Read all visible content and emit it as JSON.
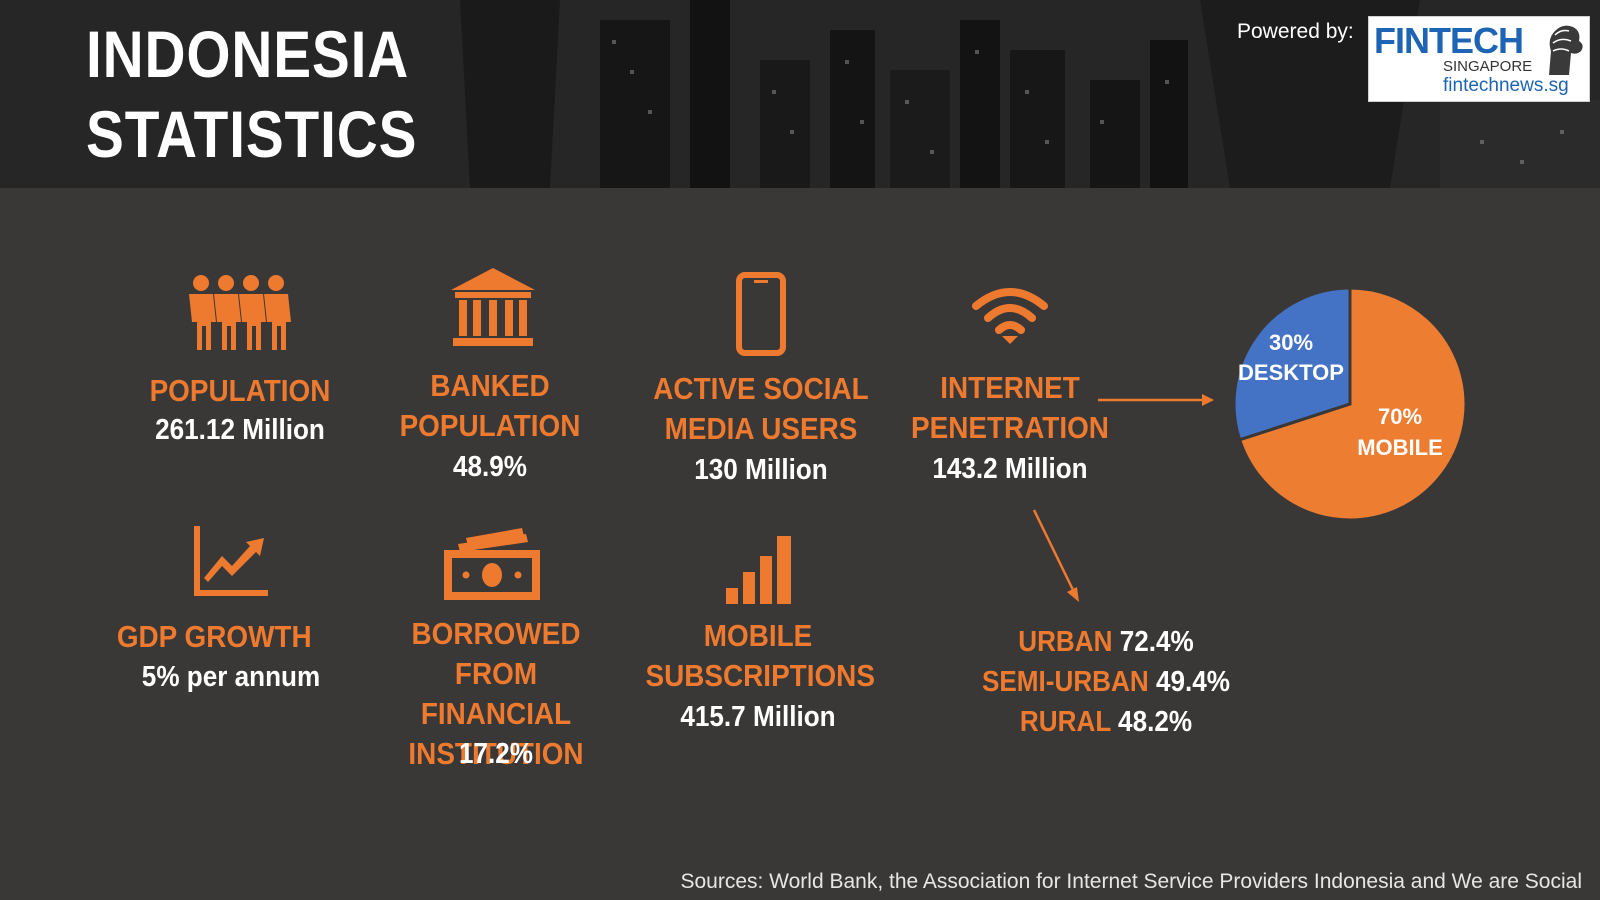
{
  "header": {
    "title_line1": "INDONESIA",
    "title_line2": "STATISTICS",
    "powered_by": "Powered by:",
    "logo": {
      "brand": "FINTECH",
      "sub": "SINGAPORE",
      "site": "fintechnews.sg"
    }
  },
  "stats": {
    "population": {
      "icon": "people-icon",
      "label": "POPULATION",
      "value": "261.12 Million"
    },
    "banked": {
      "icon": "bank-icon",
      "label_line1": "BANKED",
      "label_line2": "POPULATION",
      "value": "48.9%"
    },
    "social": {
      "icon": "smartphone-icon",
      "label_line1": "ACTIVE SOCIAL",
      "label_line2": "MEDIA USERS",
      "value": "130 Million"
    },
    "internet": {
      "icon": "wifi-icon",
      "label_line1": "INTERNET",
      "label_line2": "PENETRATION",
      "value": "143.2 Million"
    },
    "gdp": {
      "icon": "growth-chart-icon",
      "label": "GDP GROWTH",
      "value": "5% per annum"
    },
    "borrowed": {
      "icon": "cash-icon",
      "label_line1": "BORROWED FROM",
      "label_line2": "FINANCIAL",
      "label_line3": "INSTITUTION",
      "value": "17.2%"
    },
    "mobile": {
      "icon": "signal-bars-icon",
      "label_line1": "MOBILE",
      "label_line2": "SUBSCRIPTIONS",
      "value": "415.7 Million"
    }
  },
  "internet_breakdown": [
    {
      "label": "URBAN",
      "value": "72.4%"
    },
    {
      "label": "SEMI-URBAN",
      "value": "49.4%"
    },
    {
      "label": "RURAL",
      "value": "48.2%"
    }
  ],
  "chart_data": {
    "type": "pie",
    "slices": [
      {
        "label": "DESKTOP",
        "value": 30,
        "display": "30%",
        "color": "#4472c4"
      },
      {
        "label": "MOBILE",
        "value": 70,
        "display": "70%",
        "color": "#ed7d31"
      }
    ]
  },
  "colors": {
    "accent": "#ee7a2f",
    "background": "#3a3837",
    "text": "#ffffff"
  },
  "source": "Sources: World Bank, the Association for Internet Service Providers Indonesia and We are Social"
}
